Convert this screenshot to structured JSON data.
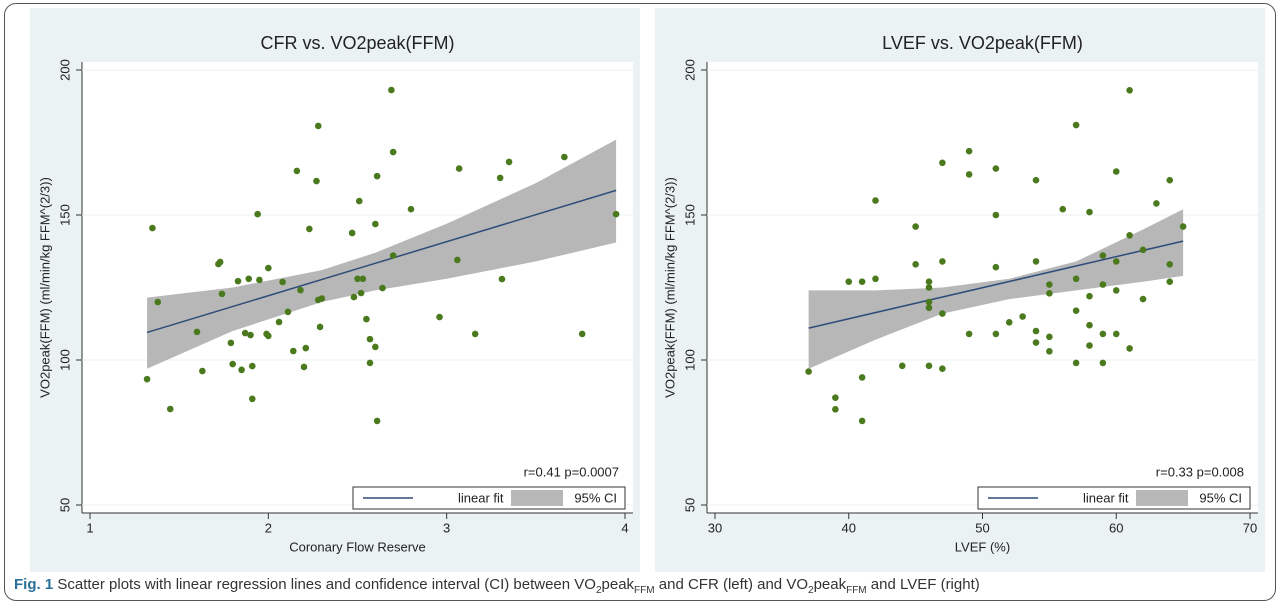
{
  "chart_data": [
    {
      "type": "scatter",
      "title": "CFR vs. VO2peak(FFM)",
      "x_label": "Coronary Flow Reserve",
      "y_label": "VO2peak(FFM) (ml/min/kg FFM^(2/3))",
      "annotation": "r=0.41 p=0.0007",
      "xlim": [
        1,
        4
      ],
      "ylim": [
        50,
        200
      ],
      "xticks": [
        1,
        2,
        3,
        4
      ],
      "yticks": [
        50,
        100,
        150,
        200
      ],
      "grid": true,
      "legend": "bottom-right",
      "points": {
        "color": "#4b7a1e",
        "x": [
          1.32,
          1.35,
          1.38,
          1.45,
          1.6,
          1.63,
          1.72,
          1.73,
          1.74,
          1.79,
          1.8,
          1.83,
          1.85,
          1.87,
          1.9,
          1.89,
          1.91,
          1.91,
          1.94,
          1.95,
          1.99,
          2.0,
          2.0,
          2.06,
          2.08,
          2.11,
          2.14,
          2.16,
          2.18,
          2.2,
          2.21,
          2.23,
          2.27,
          2.28,
          2.28,
          2.29,
          2.3,
          2.47,
          2.48,
          2.5,
          2.51,
          2.52,
          2.53,
          2.55,
          2.57,
          2.57,
          2.6,
          2.6,
          2.61,
          2.61,
          2.64,
          2.69,
          2.7,
          2.7,
          2.8,
          2.96,
          3.06,
          3.07,
          3.16,
          3.3,
          3.31,
          3.35,
          3.66,
          3.76,
          3.95
        ],
        "values": [
          93.4,
          145.5,
          120,
          83.1,
          109.7,
          96.2,
          133.1,
          133.8,
          122.8,
          105.9,
          98.6,
          127.2,
          96.6,
          109.3,
          108.6,
          128,
          86.6,
          97.9,
          150.3,
          127.6,
          109,
          108.3,
          131.7,
          113.1,
          126.9,
          116.6,
          103.1,
          165.2,
          124.1,
          97.6,
          104.1,
          145.2,
          161.7,
          180.7,
          120.7,
          111.4,
          121.2,
          143.8,
          121.7,
          128,
          154.8,
          123.1,
          128,
          114.1,
          107.2,
          99,
          146.9,
          104.5,
          163.4,
          79,
          124.8,
          193.1,
          171.7,
          136,
          152,
          114.8,
          134.5,
          166,
          109,
          162.8,
          127.9,
          168.3,
          170,
          109,
          150.3
        ]
      },
      "fit": {
        "name": "linear fit",
        "color": "#2e4d79",
        "x": [
          1.32,
          3.95
        ],
        "values": [
          109.5,
          158.5
        ]
      },
      "ci": {
        "name": "95% CI",
        "color": "#b7b7b7",
        "x": [
          1.32,
          1.8,
          2.3,
          2.6,
          3.0,
          3.5,
          3.95
        ],
        "lower": [
          97,
          110,
          120,
          124,
          128,
          134,
          140.5
        ],
        "upper": [
          121.5,
          125,
          131,
          137,
          147,
          161,
          176
        ]
      }
    },
    {
      "type": "scatter",
      "title": "LVEF vs. VO2peak(FFM)",
      "x_label": "LVEF (%)",
      "y_label": "VO2peak(FFM) (ml/min/kg FFM^(2/3))",
      "annotation": "r=0.33 p=0.008",
      "xlim": [
        30,
        70
      ],
      "ylim": [
        50,
        200
      ],
      "xticks": [
        30,
        40,
        50,
        60,
        70
      ],
      "yticks": [
        50,
        100,
        150,
        200
      ],
      "grid": true,
      "legend": "bottom-right",
      "points": {
        "color": "#4b7a1e",
        "x": [
          37,
          39,
          39,
          40,
          41,
          41,
          41,
          42,
          42,
          44,
          45,
          45,
          46,
          46,
          46,
          46,
          46,
          47,
          47,
          47,
          47,
          49,
          49,
          49,
          51,
          51,
          51,
          51,
          52,
          53,
          54,
          54,
          54,
          54,
          55,
          55,
          55,
          55,
          56,
          57,
          57,
          57,
          57,
          58,
          58,
          58,
          58,
          59,
          59,
          59,
          59,
          60,
          60,
          60,
          60,
          61,
          61,
          61,
          62,
          62,
          63,
          64,
          64,
          64,
          65
        ],
        "values": [
          96,
          87,
          83,
          127,
          127,
          94,
          79,
          155,
          128,
          98,
          146,
          133,
          127,
          125,
          120,
          118,
          98,
          134,
          116,
          97,
          168,
          172,
          164,
          109,
          166,
          150,
          132,
          109,
          113,
          115,
          162,
          134,
          110,
          106,
          126,
          123,
          103,
          108,
          152,
          181,
          128,
          117,
          99,
          151,
          122,
          112,
          105,
          126,
          136,
          109,
          99,
          165,
          134,
          124,
          109,
          193,
          143,
          104,
          121,
          138,
          154,
          162,
          127,
          133,
          146
        ]
      },
      "fit": {
        "name": "linear fit",
        "color": "#2e4d79",
        "x": [
          37,
          65
        ],
        "values": [
          111,
          141
        ]
      },
      "ci": {
        "name": "95% CI",
        "color": "#b7b7b7",
        "x": [
          37,
          42,
          47,
          52,
          57,
          62,
          65
        ],
        "lower": [
          97,
          107,
          116,
          121,
          124,
          127,
          129
        ],
        "upper": [
          124,
          124,
          125,
          128,
          134,
          145,
          152
        ]
      }
    }
  ],
  "caption": {
    "label": "Fig. 1",
    "segments": [
      {
        "text": "Scatter plots with linear regression lines and confidence interval (CI) between VO",
        "style": "normal"
      },
      {
        "text": "2",
        "style": "sub"
      },
      {
        "text": "peak",
        "style": "normal"
      },
      {
        "text": "FFM",
        "style": "sub"
      },
      {
        "text": " and CFR (left) and VO",
        "style": "normal"
      },
      {
        "text": "2",
        "style": "sub"
      },
      {
        "text": "peak",
        "style": "normal"
      },
      {
        "text": "FFM",
        "style": "sub"
      },
      {
        "text": " and LVEF (right)",
        "style": "normal"
      }
    ]
  }
}
